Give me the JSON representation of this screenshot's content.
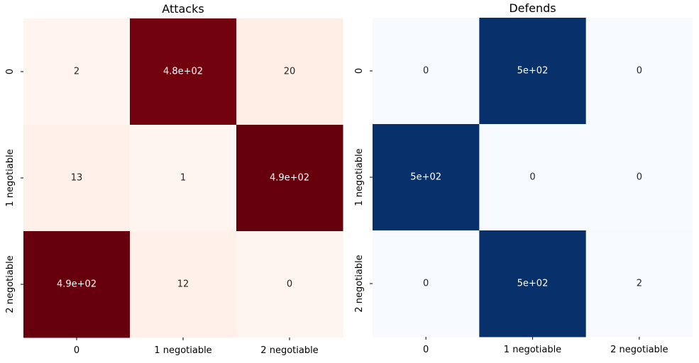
{
  "chart_data": [
    {
      "type": "heatmap",
      "title": "Attacks",
      "xlabel": "",
      "ylabel": "",
      "x_tick_labels": [
        "0",
        "1 negotiable",
        "2 negotiable"
      ],
      "y_tick_labels": [
        "0",
        "1 negotiable",
        "2 negotiable"
      ],
      "values": [
        [
          2,
          480,
          20
        ],
        [
          13,
          1,
          490
        ],
        [
          490,
          12,
          0
        ]
      ],
      "annotations": [
        [
          "2",
          "4.8e+02",
          "20"
        ],
        [
          "13",
          "1",
          "4.9e+02"
        ],
        [
          "4.9e+02",
          "12",
          "0"
        ]
      ],
      "colormap": "Reds",
      "color_range": [
        0,
        490
      ],
      "colorbar": false
    },
    {
      "type": "heatmap",
      "title": "Defends",
      "xlabel": "",
      "ylabel": "",
      "x_tick_labels": [
        "0",
        "1 negotiable",
        "2 negotiable"
      ],
      "y_tick_labels": [
        "0",
        "1 negotiable",
        "2 negotiable"
      ],
      "values": [
        [
          0,
          500,
          0
        ],
        [
          500,
          0,
          0
        ],
        [
          0,
          500,
          2
        ]
      ],
      "annotations": [
        [
          "0",
          "5e+02",
          "0"
        ],
        [
          "5e+02",
          "0",
          "0"
        ],
        [
          "0",
          "5e+02",
          "2"
        ]
      ],
      "colormap": "Blues",
      "color_range": [
        0,
        500
      ],
      "colorbar": false
    }
  ]
}
